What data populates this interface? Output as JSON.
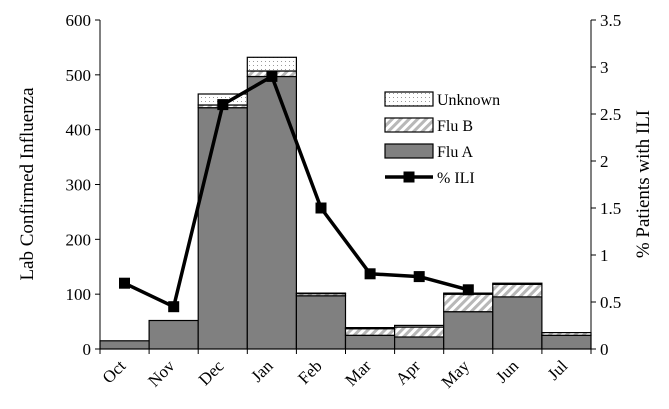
{
  "chart_data": {
    "type": "bar",
    "title": "",
    "categories": [
      "Oct",
      "Nov",
      "Dec",
      "Jan",
      "Feb",
      "Mar",
      "Apr",
      "May",
      "Jun",
      "Jul"
    ],
    "series": [
      {
        "name": "Flu A",
        "kind": "stacked-bar",
        "axis": "left",
        "color": "#808080",
        "values": [
          15,
          52,
          440,
          497,
          97,
          25,
          22,
          68,
          95,
          25
        ]
      },
      {
        "name": "Flu B",
        "kind": "stacked-bar",
        "axis": "left",
        "color": "#d6d6d6",
        "pattern": "diagonal-hatch",
        "values": [
          0,
          0,
          5,
          10,
          4,
          12,
          18,
          32,
          23,
          5
        ]
      },
      {
        "name": "Unknown",
        "kind": "stacked-bar",
        "axis": "left",
        "color": "#ffffff",
        "pattern": "dots",
        "values": [
          0,
          0,
          20,
          25,
          1,
          2,
          3,
          2,
          2,
          0
        ]
      },
      {
        "name": "% ILI",
        "kind": "line",
        "axis": "right",
        "color": "#000000",
        "marker": "square",
        "values": [
          0.7,
          0.45,
          2.6,
          2.9,
          1.5,
          0.8,
          0.77,
          0.63,
          null,
          null
        ]
      }
    ],
    "ylabel": "Lab Confirmed Influenza",
    "y2label": "% Patients with ILI",
    "ylim": [
      0,
      600
    ],
    "y2lim": [
      0,
      3.5
    ],
    "yticks": [
      0,
      100,
      200,
      300,
      400,
      500,
      600
    ],
    "y2ticks": [
      "0",
      "0.5",
      "1",
      "1.5",
      "2",
      "2.5",
      "3",
      "3.5"
    ],
    "grid": false,
    "legend": {
      "position": "right",
      "order": [
        "Unknown",
        "Flu B",
        "Flu A",
        "% ILI"
      ]
    }
  }
}
